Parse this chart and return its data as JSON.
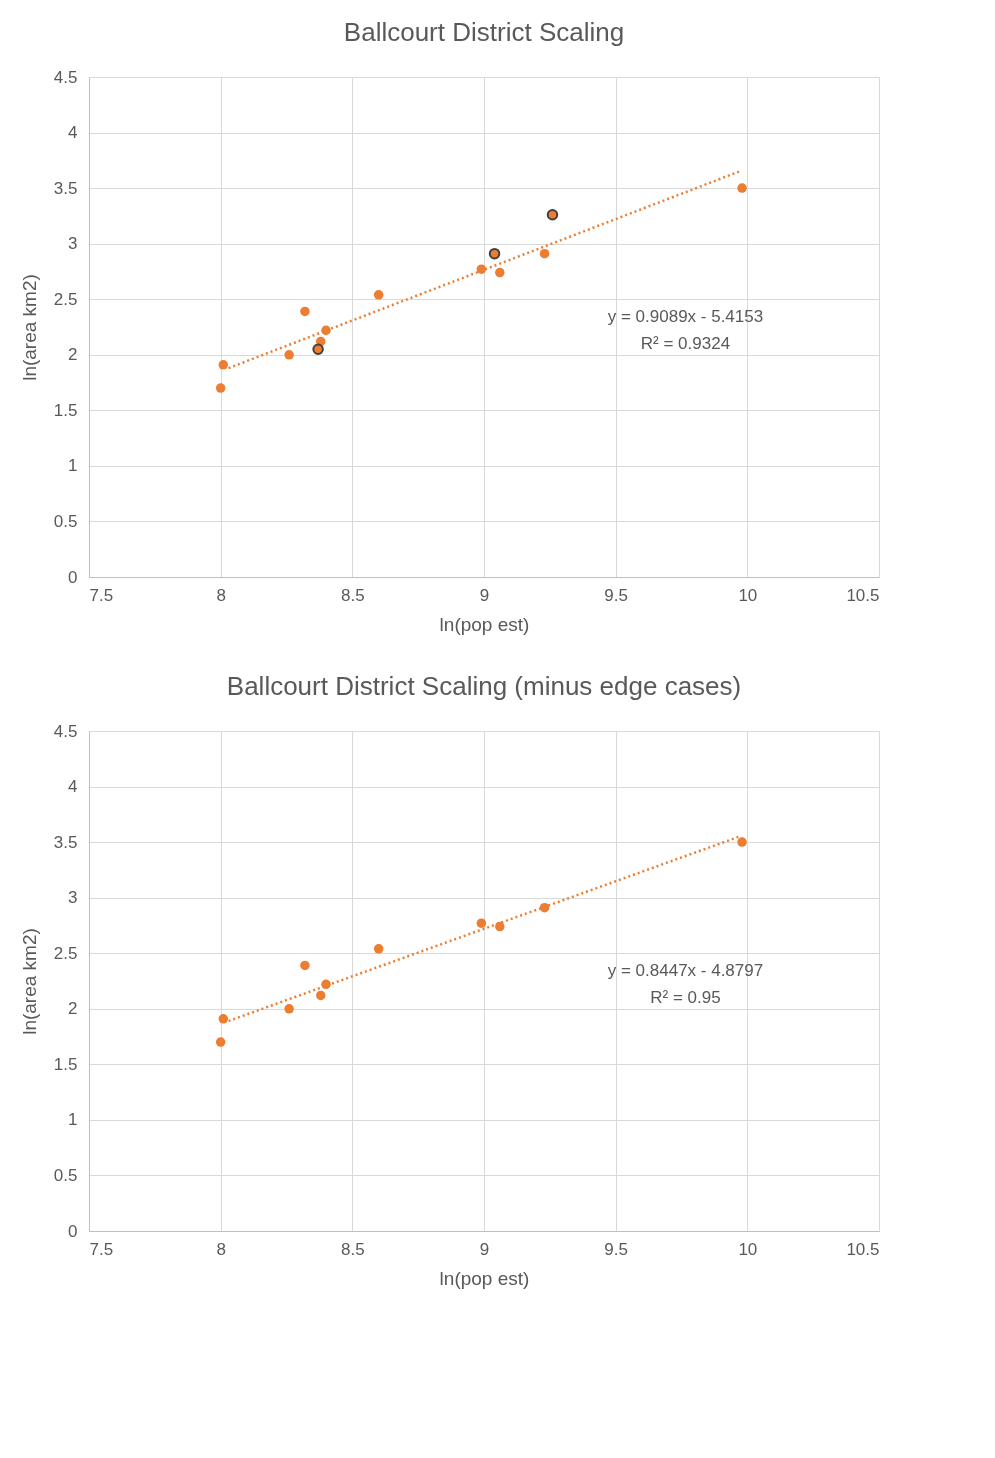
{
  "chart_data": [
    {
      "type": "scatter",
      "title": "Ballcourt District Scaling",
      "xlabel": "ln(pop est)",
      "ylabel": "ln(area km2)",
      "xlim": [
        7.5,
        10.5
      ],
      "ylim": [
        0,
        4.5
      ],
      "xticks": [
        7.5,
        8,
        8.5,
        9,
        9.5,
        10,
        10.5
      ],
      "yticks": [
        0,
        0.5,
        1,
        1.5,
        2,
        2.5,
        3,
        3.5,
        4,
        4.5
      ],
      "grid": true,
      "annotations": [
        "y = 0.9089x - 5.4153",
        "R² = 0.9324"
      ],
      "series": [
        {
          "color": "#ed7d31",
          "x": [
            8.0,
            8.01,
            8.26,
            8.32,
            8.38,
            8.4,
            8.6,
            8.99,
            9.06,
            9.23,
            9.98
          ],
          "values": [
            1.7,
            1.91,
            2.0,
            2.39,
            2.12,
            2.22,
            2.54,
            2.77,
            2.74,
            2.91,
            3.5
          ]
        },
        {
          "color": "#ed7d31",
          "x": [
            8.37,
            9.04,
            9.26
          ],
          "values": [
            2.05,
            2.91,
            3.26
          ]
        },
        {
          "type": "line",
          "line_style": "dotted",
          "color": "#ed7d31",
          "x": [
            8.03,
            9.97
          ],
          "values": [
            1.88,
            3.65
          ]
        }
      ]
    },
    {
      "type": "scatter",
      "title": "Ballcourt District Scaling (minus edge cases)",
      "xlabel": "ln(pop est)",
      "ylabel": "ln(area km2)",
      "xlim": [
        7.5,
        10.5
      ],
      "ylim": [
        0,
        4.5
      ],
      "xticks": [
        7.5,
        8,
        8.5,
        9,
        9.5,
        10,
        10.5
      ],
      "yticks": [
        0,
        0.5,
        1,
        1.5,
        2,
        2.5,
        3,
        3.5,
        4,
        4.5
      ],
      "grid": true,
      "annotations": [
        "y = 0.8447x - 4.8797",
        "R² = 0.95"
      ],
      "series": [
        {
          "color": "#ed7d31",
          "x": [
            8.0,
            8.01,
            8.26,
            8.32,
            8.38,
            8.4,
            8.6,
            8.99,
            9.06,
            9.23,
            9.98
          ],
          "values": [
            1.7,
            1.91,
            2.0,
            2.39,
            2.12,
            2.22,
            2.54,
            2.77,
            2.74,
            2.91,
            3.5
          ]
        },
        {
          "type": "line",
          "line_style": "dotted",
          "color": "#ed7d31",
          "x": [
            8.03,
            9.97
          ],
          "values": [
            1.89,
            3.55
          ]
        }
      ]
    }
  ]
}
